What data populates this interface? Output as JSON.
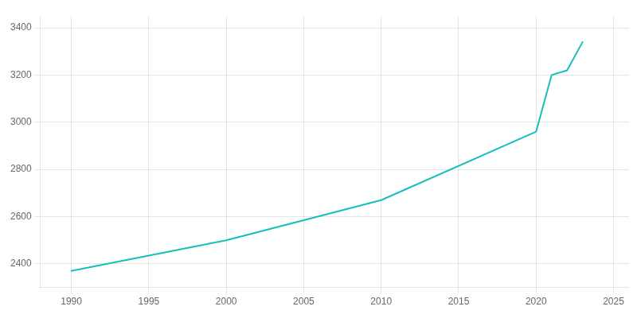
{
  "chart_data": {
    "type": "line",
    "x": [
      1990,
      2000,
      2010,
      2020,
      2021,
      2022,
      2023
    ],
    "values": [
      2370,
      2500,
      2670,
      2960,
      3200,
      3220,
      3340
    ],
    "color": "#17BEBB",
    "xlim": [
      1988,
      2026
    ],
    "ylim": [
      2300,
      3450
    ],
    "xticks": [
      1990,
      1995,
      2000,
      2005,
      2010,
      2015,
      2020,
      2025
    ],
    "yticks": [
      2400,
      2600,
      2800,
      3000,
      3200,
      3400
    ],
    "grid": true
  }
}
